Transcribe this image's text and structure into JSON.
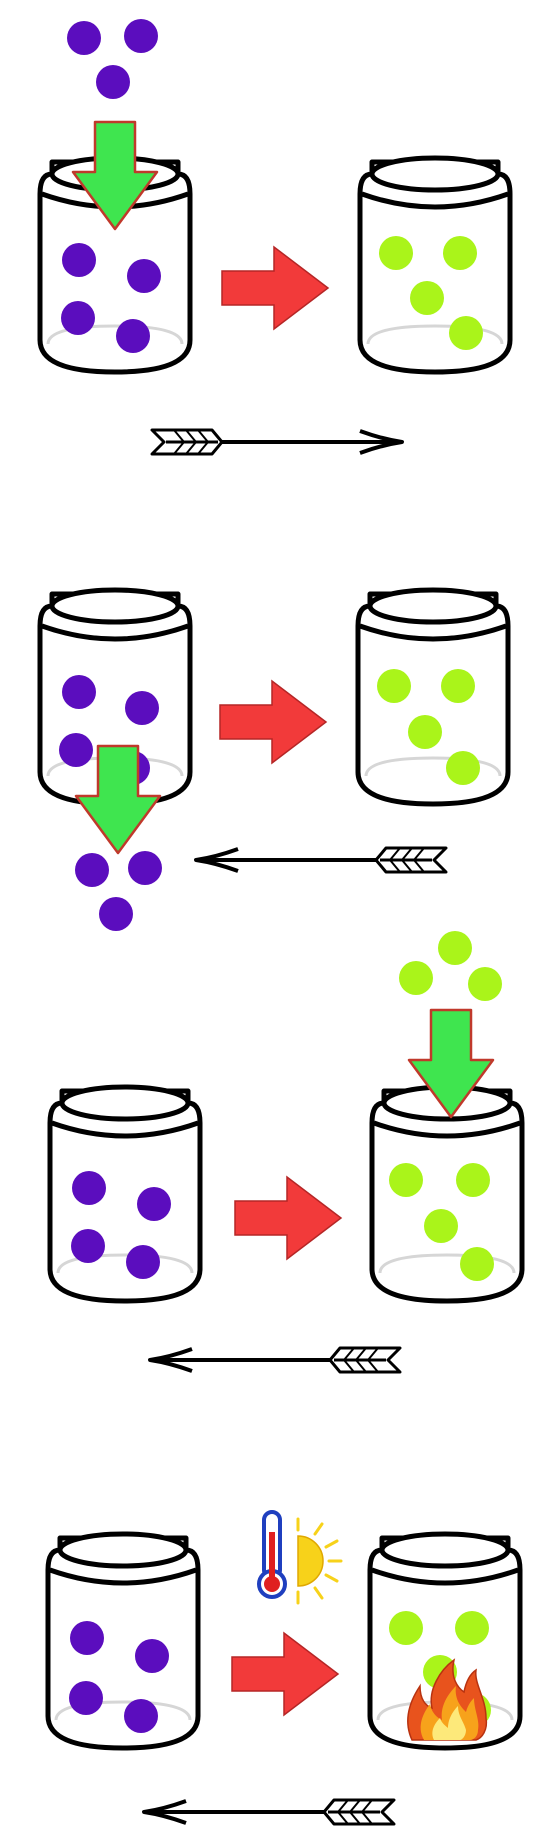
{
  "colors": {
    "reactant_ball": "#5b0dbe",
    "product_ball": "#aaf41a",
    "reaction_arrow": "#f23a3a",
    "reaction_arrow_stroke": "#b52626",
    "add_remove_arrow": "#3fe54f",
    "add_remove_arrow_stroke": "#c0392b",
    "jar_outline": "#000000",
    "jar_inner_line": "#d6d6d6",
    "thermometer_outline": "#1f3fbf",
    "thermometer_fluid": "#e02020",
    "sun": "#f7d21a",
    "flame_outer": "#e8531d",
    "flame_middle": "#f7a21b",
    "flame_inner": "#fde97a"
  },
  "panels": [
    {
      "id": "add-reactant",
      "stimulus": "add-reactant",
      "shift_arrow_direction": "right",
      "icons": [
        "down-arrow-icon"
      ]
    },
    {
      "id": "remove-reactant",
      "stimulus": "remove-reactant",
      "shift_arrow_direction": "left",
      "icons": [
        "down-arrow-icon"
      ]
    },
    {
      "id": "add-product",
      "stimulus": "add-product",
      "shift_arrow_direction": "left",
      "icons": [
        "down-arrow-icon"
      ]
    },
    {
      "id": "heat-added",
      "stimulus": "heat",
      "shift_arrow_direction": "left",
      "icons": [
        "thermometer-icon",
        "sun-icon",
        "fire-icon"
      ]
    }
  ]
}
